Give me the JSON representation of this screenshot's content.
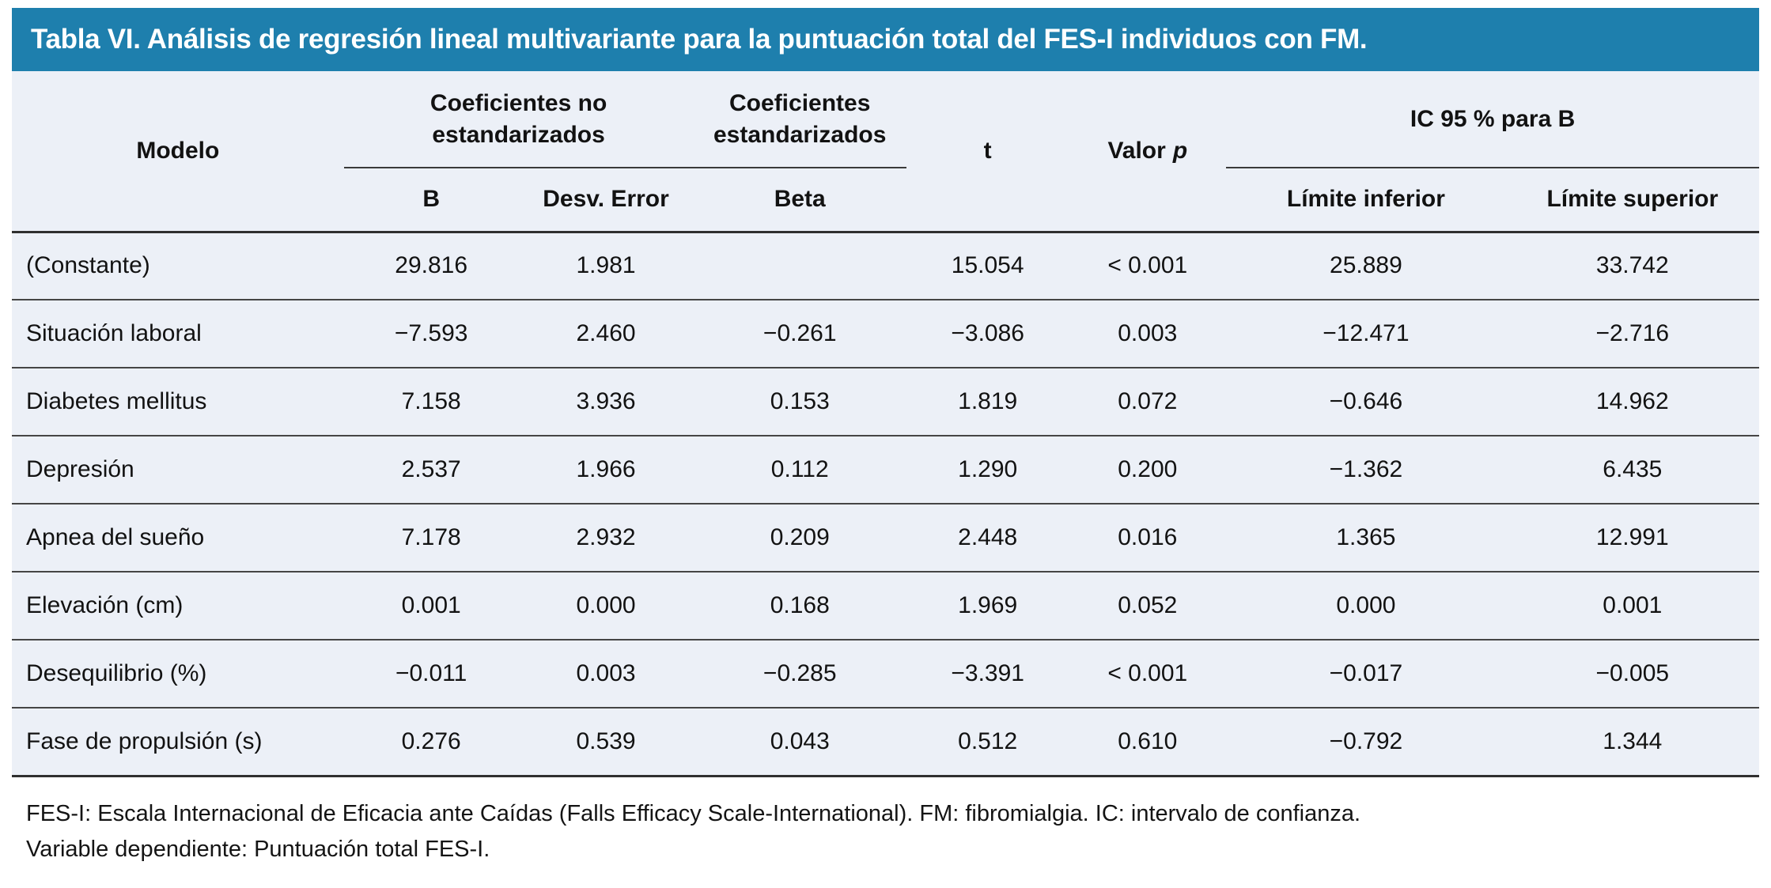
{
  "title": "Tabla VI. Análisis de regresión lineal multivariante para la puntuación total del FES-I individuos con FM.",
  "table": {
    "header": {
      "modelo": "Modelo",
      "coef_no_estandarizados": "Coeficientes no estandarizados",
      "coef_estandarizados": "Coeficientes estandarizados",
      "t": "t",
      "valor_label": "Valor",
      "p_label": "p",
      "ic": "IC 95 % para B",
      "b": "B",
      "desv_error": "Desv. Error",
      "beta": "Beta",
      "limite_inferior": "Límite inferior",
      "limite_superior": "Límite superior"
    },
    "rows": [
      {
        "modelo": "(Constante)",
        "b": "29.816",
        "desv": "1.981",
        "beta": "",
        "t": "15.054",
        "p": "< 0.001",
        "li": "25.889",
        "ls": "33.742"
      },
      {
        "modelo": "Situación laboral",
        "b": "−7.593",
        "desv": "2.460",
        "beta": "−0.261",
        "t": "−3.086",
        "p": "0.003",
        "li": "−12.471",
        "ls": "−2.716"
      },
      {
        "modelo": "Diabetes mellitus",
        "b": "7.158",
        "desv": "3.936",
        "beta": "0.153",
        "t": "1.819",
        "p": "0.072",
        "li": "−0.646",
        "ls": "14.962"
      },
      {
        "modelo": "Depresión",
        "b": "2.537",
        "desv": "1.966",
        "beta": "0.112",
        "t": "1.290",
        "p": "0.200",
        "li": "−1.362",
        "ls": "6.435"
      },
      {
        "modelo": "Apnea del sueño",
        "b": "7.178",
        "desv": "2.932",
        "beta": "0.209",
        "t": "2.448",
        "p": "0.016",
        "li": "1.365",
        "ls": "12.991"
      },
      {
        "modelo": "Elevación (cm)",
        "b": "0.001",
        "desv": "0.000",
        "beta": "0.168",
        "t": "1.969",
        "p": "0.052",
        "li": "0.000",
        "ls": "0.001"
      },
      {
        "modelo": "Desequilibrio (%)",
        "b": "−0.011",
        "desv": "0.003",
        "beta": "−0.285",
        "t": "−3.391",
        "p": "< 0.001",
        "li": "−0.017",
        "ls": "−0.005"
      },
      {
        "modelo": "Fase de propulsión (s)",
        "b": "0.276",
        "desv": "0.539",
        "beta": "0.043",
        "t": "0.512",
        "p": "0.610",
        "li": "−0.792",
        "ls": "1.344"
      }
    ],
    "footnotes": [
      "FES-I: Escala Internacional de Eficacia ante Caídas (Falls Efficacy Scale-International). FM: fibromialgia. IC: intervalo de confianza.",
      "Variable dependiente: Puntuación total FES-I."
    ]
  },
  "colors": {
    "header_bg": "#1e7fad",
    "body_bg": "#ecf0f7",
    "rule": "#454545",
    "rule_strong": "#2f2f2f",
    "title_text": "#ffffff",
    "text": "#121212"
  }
}
